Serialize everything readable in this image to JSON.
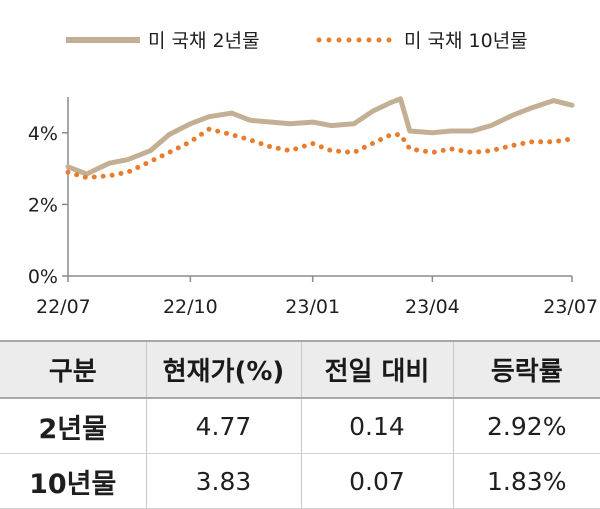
{
  "chart_data": {
    "type": "line",
    "x_tick_labels": [
      "22/07",
      "22/10",
      "23/01",
      "23/04",
      "23/07"
    ],
    "y_tick_labels": [
      "0%",
      "2%",
      "4%"
    ],
    "ylim": [
      0,
      5
    ],
    "grid": false,
    "legend_placement": "top",
    "series": [
      {
        "name": "미 국채 2년물",
        "style": "solid",
        "color": "#c3b094",
        "x": [
          "2022-07-01",
          "2022-07-15",
          "2022-08-01",
          "2022-08-15",
          "2022-09-01",
          "2022-09-15",
          "2022-10-01",
          "2022-10-15",
          "2022-11-01",
          "2022-11-15",
          "2022-12-01",
          "2022-12-15",
          "2023-01-01",
          "2023-01-15",
          "2023-02-01",
          "2023-02-15",
          "2023-03-01",
          "2023-03-08",
          "2023-03-15",
          "2023-04-01",
          "2023-04-15",
          "2023-05-01",
          "2023-05-15",
          "2023-06-01",
          "2023-06-15",
          "2023-07-01",
          "2023-07-15"
        ],
        "values": [
          3.05,
          2.85,
          3.15,
          3.25,
          3.5,
          3.95,
          4.25,
          4.45,
          4.55,
          4.35,
          4.3,
          4.25,
          4.3,
          4.2,
          4.25,
          4.6,
          4.85,
          4.95,
          4.05,
          4.0,
          4.05,
          4.05,
          4.2,
          4.5,
          4.7,
          4.9,
          4.77
        ]
      },
      {
        "name": "미 국채 10년물",
        "style": "dotted",
        "color": "#e87d2e",
        "x": [
          "2022-07-01",
          "2022-07-15",
          "2022-08-01",
          "2022-08-15",
          "2022-09-01",
          "2022-09-15",
          "2022-10-01",
          "2022-10-15",
          "2022-11-01",
          "2022-11-15",
          "2022-12-01",
          "2022-12-15",
          "2023-01-01",
          "2023-01-15",
          "2023-02-01",
          "2023-02-15",
          "2023-03-01",
          "2023-03-08",
          "2023-03-15",
          "2023-04-01",
          "2023-04-15",
          "2023-05-01",
          "2023-05-15",
          "2023-06-01",
          "2023-06-15",
          "2023-07-01",
          "2023-07-15"
        ],
        "values": [
          2.9,
          2.75,
          2.8,
          2.9,
          3.2,
          3.45,
          3.75,
          4.1,
          3.95,
          3.8,
          3.6,
          3.5,
          3.7,
          3.5,
          3.45,
          3.7,
          3.95,
          3.95,
          3.55,
          3.45,
          3.55,
          3.45,
          3.5,
          3.65,
          3.75,
          3.75,
          3.83
        ]
      }
    ]
  },
  "table": {
    "headers": [
      "구분",
      "현재가(%)",
      "전일 대비",
      "등락률"
    ],
    "rows": [
      [
        "2년물",
        "4.77",
        "0.14",
        "2.92%"
      ],
      [
        "10년물",
        "3.83",
        "0.07",
        "1.83%"
      ]
    ]
  }
}
